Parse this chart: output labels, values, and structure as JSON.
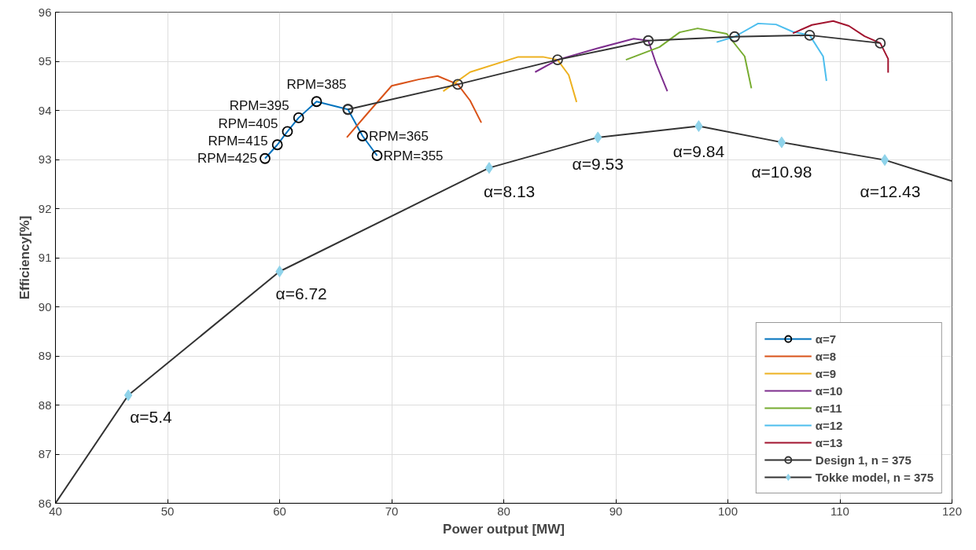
{
  "chart_data": {
    "type": "line",
    "xlabel": "Power output [MW]",
    "ylabel": "Efficiency[%]",
    "xlim": [
      40,
      120
    ],
    "ylim": [
      86,
      96
    ],
    "xticks": [
      40,
      50,
      60,
      70,
      80,
      90,
      100,
      110,
      120
    ],
    "yticks": [
      86,
      87,
      88,
      89,
      90,
      91,
      92,
      93,
      94,
      95,
      96
    ],
    "grid": true,
    "legend": "bottom right",
    "series": [
      {
        "name": "α=7",
        "color": "#0072bd",
        "marker": "circle",
        "x": [
          58.7,
          59.8,
          60.7,
          61.7,
          63.3,
          66.1,
          67.4,
          68.7
        ],
        "values": [
          93.02,
          93.3,
          93.57,
          93.85,
          94.18,
          94.02,
          93.48,
          93.08
        ]
      },
      {
        "name": "α=8",
        "color": "#d95319",
        "x": [
          66.0,
          68.0,
          70.0,
          72.4,
          74.1,
          75.9,
          77.0,
          78.0
        ],
        "values": [
          93.45,
          93.98,
          94.5,
          94.63,
          94.7,
          94.53,
          94.2,
          93.75
        ]
      },
      {
        "name": "α=9",
        "color": "#edb120",
        "x": [
          74.6,
          77.0,
          81.3,
          83.5,
          84.8,
          85.8,
          86.5
        ],
        "values": [
          94.39,
          94.78,
          95.09,
          95.09,
          95.03,
          94.72,
          94.17
        ]
      },
      {
        "name": "α=10",
        "color": "#7e2f8e",
        "x": [
          82.8,
          84.8,
          88.3,
          91.6,
          92.9,
          93.6,
          94.6
        ],
        "values": [
          94.78,
          95.03,
          95.26,
          95.46,
          95.42,
          94.95,
          94.39
        ]
      },
      {
        "name": "α=11",
        "color": "#77ac30",
        "x": [
          90.9,
          93.9,
          95.7,
          97.3,
          99.9,
          101.5,
          102.1
        ],
        "values": [
          95.03,
          95.29,
          95.59,
          95.67,
          95.56,
          95.1,
          94.45
        ]
      },
      {
        "name": "α=12",
        "color": "#4dbeee",
        "x": [
          99.0,
          100.6,
          102.7,
          104.3,
          105.8,
          107.3,
          108.5,
          108.8
        ],
        "values": [
          95.39,
          95.5,
          95.77,
          95.75,
          95.6,
          95.53,
          95.1,
          94.6
        ]
      },
      {
        "name": "α=13",
        "color": "#a2142f",
        "x": [
          105.8,
          107.5,
          109.4,
          110.8,
          112.2,
          113.6,
          114.3,
          114.3
        ],
        "values": [
          95.57,
          95.74,
          95.82,
          95.72,
          95.51,
          95.37,
          95.05,
          94.77
        ]
      },
      {
        "name": "Design 1, n = 375",
        "color": "#333333",
        "marker": "circle",
        "x": [
          66.1,
          75.9,
          84.8,
          92.9,
          100.6,
          107.3,
          113.6
        ],
        "values": [
          94.02,
          94.53,
          95.03,
          95.42,
          95.5,
          95.53,
          95.37
        ]
      },
      {
        "name": "Tokke model, n = 375",
        "color": "#333333",
        "marker": "diamond",
        "colors": [
          null,
          "#8fd3ea",
          "#8fd3ea",
          "#8fd3ea",
          "#8fd3ea",
          "#8fd3ea",
          "#8fd3ea",
          "#8fd3ea",
          null
        ],
        "x": [
          40,
          46.5,
          60.0,
          78.7,
          88.4,
          97.4,
          104.8,
          114.0,
          120
        ],
        "values": [
          86.0,
          88.2,
          90.72,
          92.83,
          93.45,
          93.68,
          93.35,
          92.99,
          92.56
        ]
      }
    ],
    "annotations": [
      {
        "text": "RPM=425",
        "x": 58.7,
        "y": 93.02
      },
      {
        "text": "RPM=415",
        "x": 59.8,
        "y": 93.3
      },
      {
        "text": "RPM=405",
        "x": 60.7,
        "y": 93.57
      },
      {
        "text": "RPM=395",
        "x": 61.7,
        "y": 93.85
      },
      {
        "text": "RPM=385",
        "x": 63.3,
        "y": 94.18
      },
      {
        "text": "RPM=365",
        "x": 67.4,
        "y": 93.48
      },
      {
        "text": "RPM=355",
        "x": 68.7,
        "y": 93.08
      },
      {
        "text": "α=5.4",
        "x": 46.5,
        "y": 88.2
      },
      {
        "text": "α=6.72",
        "x": 60.0,
        "y": 90.72
      },
      {
        "text": "α=8.13",
        "x": 78.7,
        "y": 92.83
      },
      {
        "text": "α=9.53",
        "x": 88.4,
        "y": 93.45
      },
      {
        "text": "α=9.84",
        "x": 97.4,
        "y": 93.68
      },
      {
        "text": "α=10.98",
        "x": 104.8,
        "y": 93.35
      },
      {
        "text": "α=12.43",
        "x": 114.0,
        "y": 92.99
      }
    ]
  }
}
